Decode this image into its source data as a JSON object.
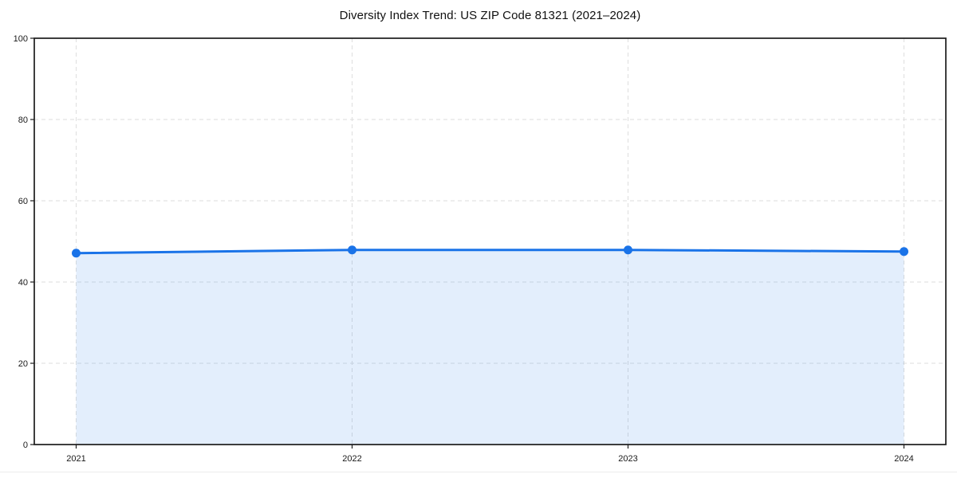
{
  "chart_data": {
    "type": "line",
    "title": "Diversity Index Trend: US ZIP Code 81321 (2021–2024)",
    "categories": [
      "2021",
      "2022",
      "2023",
      "2024"
    ],
    "series": [
      {
        "name": "Diversity Index",
        "values": [
          47.1,
          47.9,
          47.9,
          47.5
        ]
      }
    ],
    "xlabel": "",
    "ylabel": "",
    "ylim": [
      0,
      100
    ],
    "yticks": [
      0,
      20,
      40,
      60,
      80,
      100
    ],
    "grid": "dashed-both-axes",
    "legend": "none",
    "area_fill": true,
    "marker": "circle",
    "colors": {
      "line": "#1a73e8",
      "marker": "#1a73e8",
      "area": "rgba(26,115,232,0.12)",
      "grid": "#dedede",
      "axis": "#1c1c1c",
      "tick_label": "#1a1a1a",
      "title": "#111111",
      "background": "#ffffff",
      "footer_rule": "#ececec"
    }
  }
}
